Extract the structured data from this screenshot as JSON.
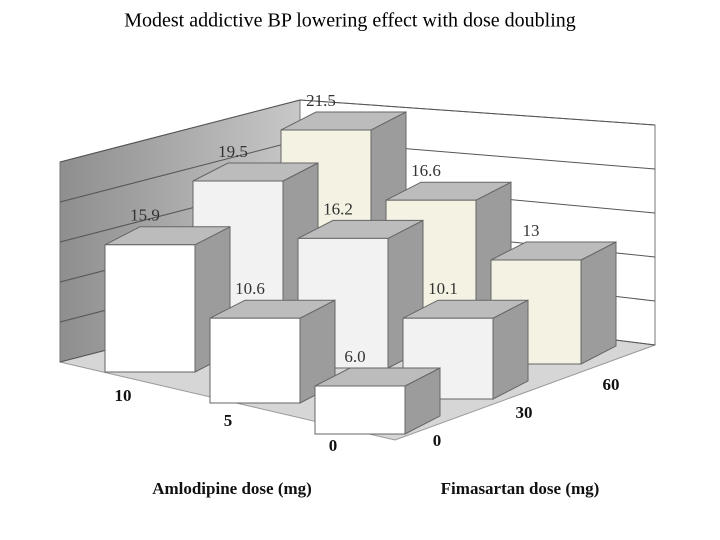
{
  "chart_data": {
    "type": "bar3d",
    "title": "Modest addictive BP lowering effect with dose doubling",
    "x_label": "Amlodipine dose (mg)",
    "z_label": "Fimasartan dose (mg)",
    "categories": [
      "10",
      "5",
      "0"
    ],
    "depth_categories": [
      "0",
      "30",
      "60"
    ],
    "values": [
      [
        15.9,
        19.5,
        21.5
      ],
      [
        10.6,
        16.2,
        16.6
      ],
      [
        6,
        10.1,
        13
      ]
    ],
    "value_labels": [
      [
        "15.9",
        "19.5",
        "21.5"
      ],
      [
        "10.6",
        "16.2",
        "16.6"
      ],
      [
        "6.0",
        "10.1",
        "13"
      ]
    ],
    "colors": [
      "#ffffff",
      "#f2f2f2",
      "#f4f2e2"
    ],
    "ylim": [
      0,
      25
    ],
    "yticks": [
      0,
      5,
      10,
      15,
      20,
      25
    ],
    "grid": true
  }
}
